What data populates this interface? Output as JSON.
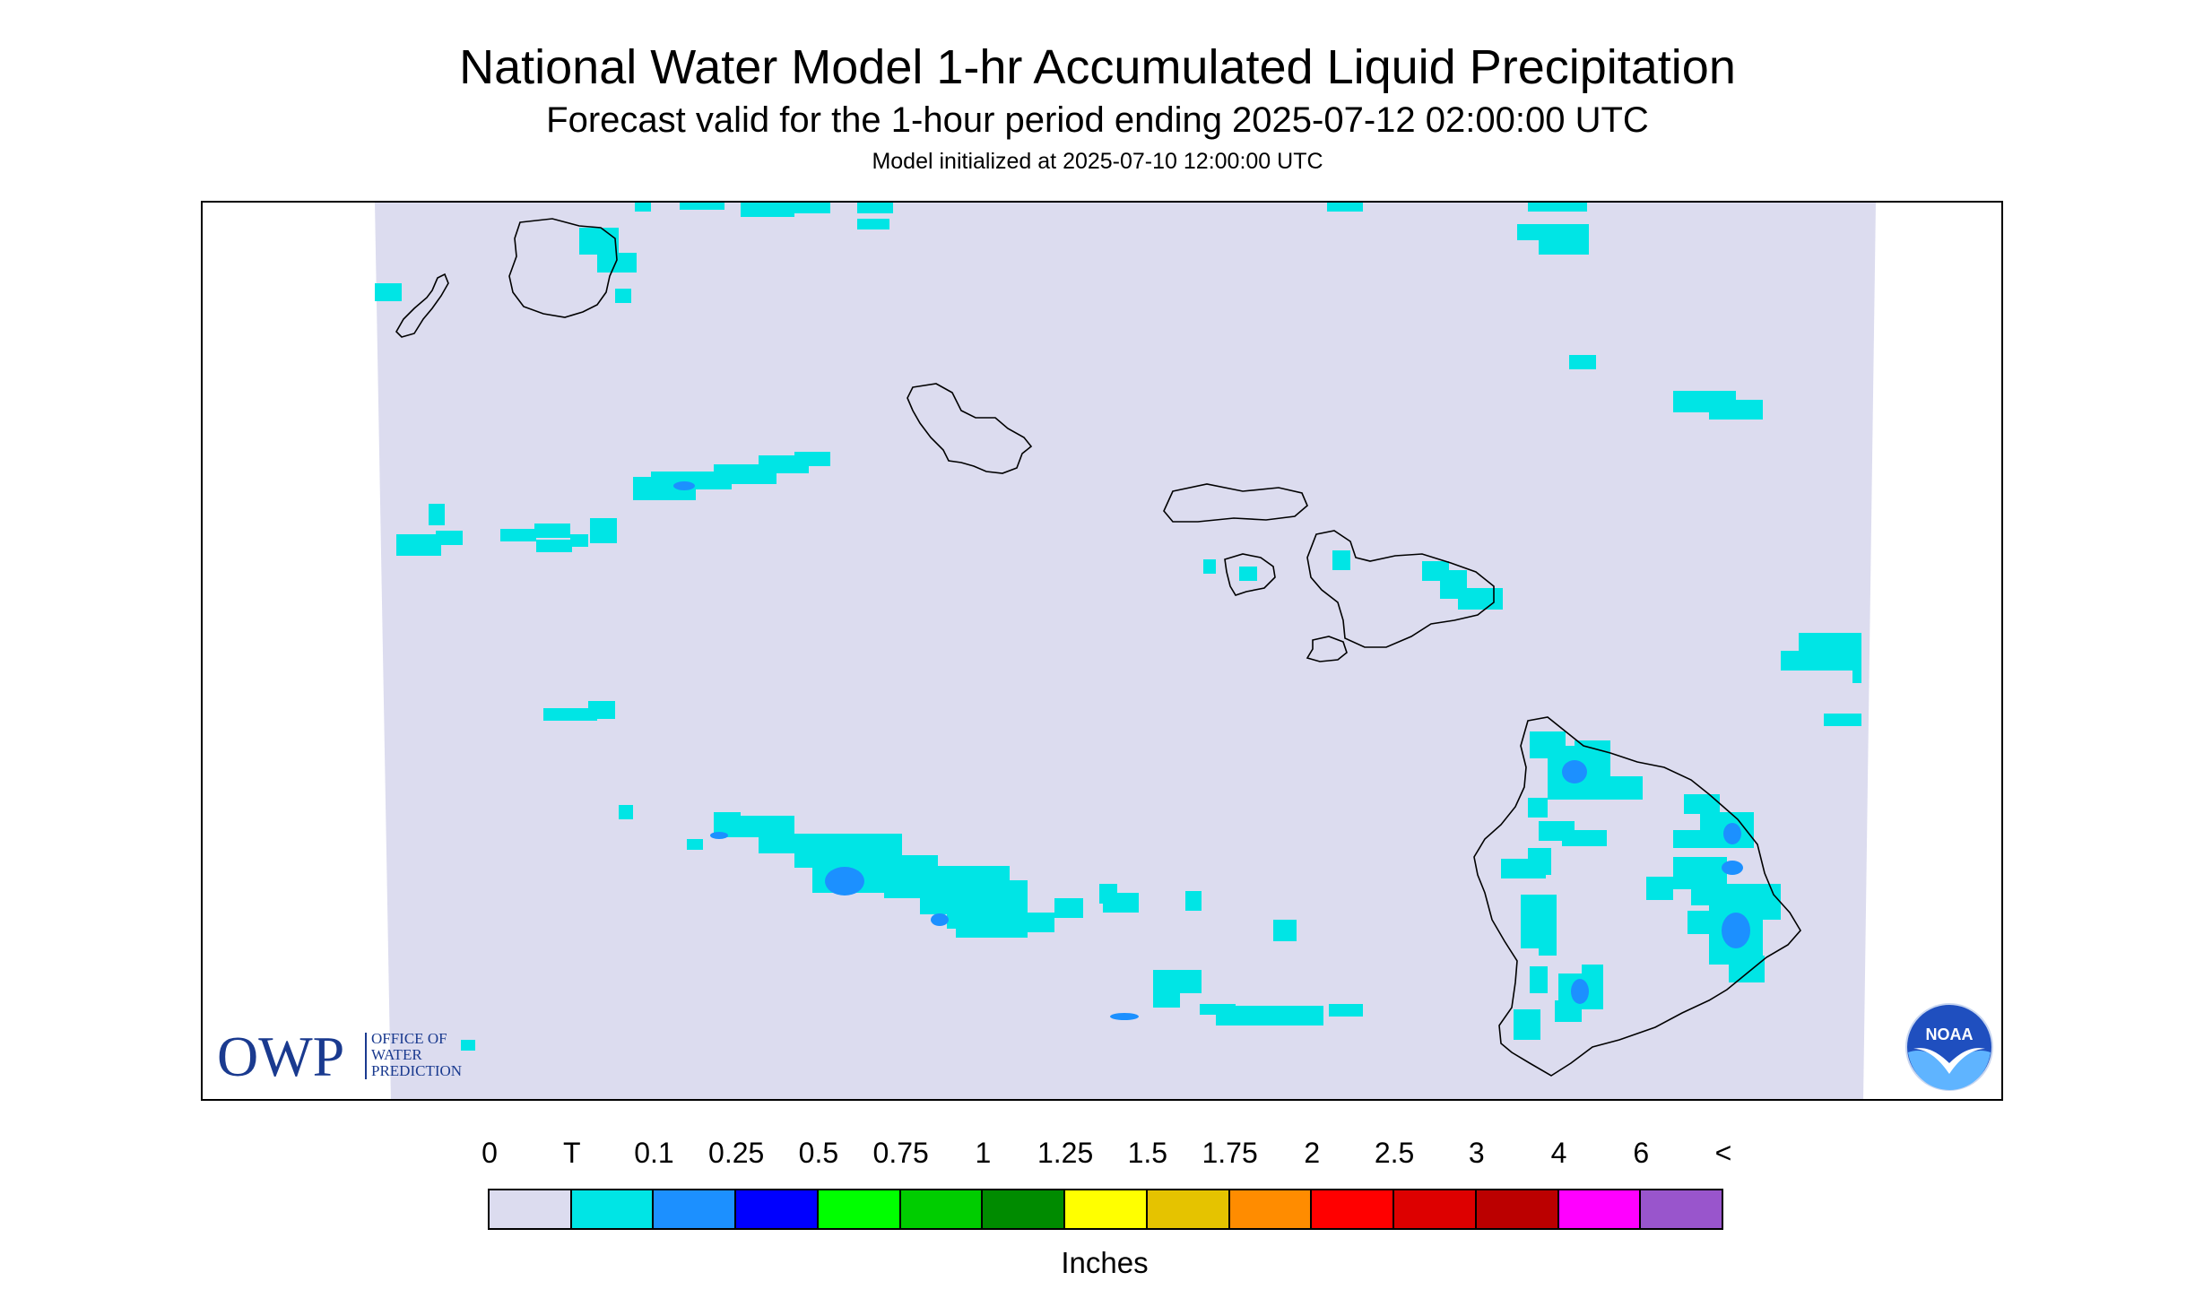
{
  "header": {
    "title": "National Water Model 1-hr Accumulated Liquid Precipitation",
    "subtitle": "Forecast valid for the 1-hour period ending 2025-07-12 02:00:00 UTC",
    "init": "Model initialized at 2025-07-10 12:00:00 UTC"
  },
  "colors": {
    "domain": "#dcdcef",
    "coast": "#000000",
    "light_precip": "#00e5e5",
    "med_precip": "#1c90ff"
  },
  "logos": {
    "owp_letters": "OWP",
    "owp_line1": "OFFICE OF",
    "owp_line2": "WATER",
    "owp_line3": "PREDICTION",
    "noaa_text": "NOAA"
  },
  "legend": {
    "labels": [
      "0",
      "T",
      "0.1",
      "0.25",
      "0.5",
      "0.75",
      "1",
      "1.25",
      "1.5",
      "1.75",
      "2",
      "2.5",
      "3",
      "4",
      "6",
      "<"
    ],
    "colors": [
      "#dcdcef",
      "#00e5e5",
      "#1c90ff",
      "#0000ff",
      "#00ff00",
      "#00cd00",
      "#008b00",
      "#ffff00",
      "#e5c300",
      "#ff8c00",
      "#ff0000",
      "#dd0000",
      "#bb0000",
      "#ff00ff",
      "#9955cc"
    ],
    "units": "Inches"
  }
}
